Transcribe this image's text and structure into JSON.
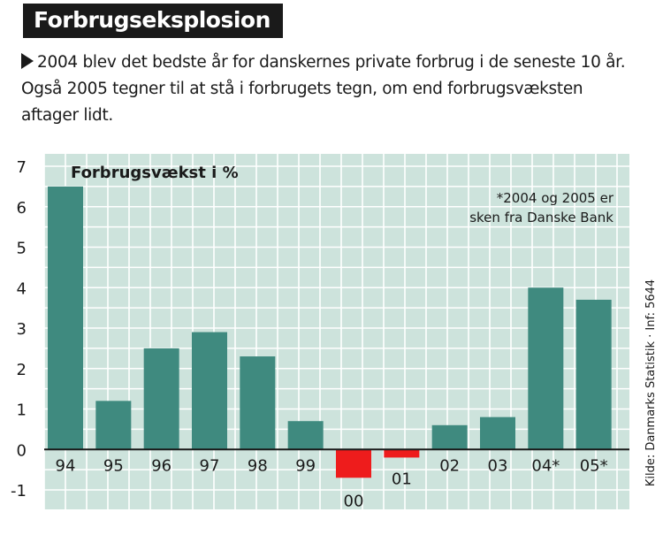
{
  "title": "Forbrugseksplosion",
  "intro": "2004 blev det bedste år for danskernes private forbrug i de seneste 10 år. Også 2005 tegner til at stå i forbrugets tegn, om end forbrugsvæksten aftager lidt.",
  "colors": {
    "plot_bg": "#cde3dc",
    "bar_positive": "#3f8a7f",
    "bar_negative": "#ee1c1c",
    "grid": "#ffffff",
    "title_bg": "#1a1a1a"
  },
  "chart_data": {
    "type": "bar",
    "ylabel": "Forbrugsvækst i %",
    "note_lines": [
      "*2004 og 2005 er",
      "sken fra Danske Bank"
    ],
    "source": "Kilde: Danmarks Statistik · Inf: 5644",
    "ylim": [
      -1,
      7
    ],
    "yticks": [
      -1,
      0,
      1,
      2,
      3,
      4,
      5,
      6,
      7
    ],
    "grid": true,
    "categories": [
      "94",
      "95",
      "96",
      "97",
      "98",
      "99",
      "00",
      "01",
      "02",
      "03",
      "04*",
      "05*"
    ],
    "values": [
      6.5,
      1.2,
      2.5,
      2.9,
      2.3,
      0.7,
      -0.7,
      -0.2,
      0.6,
      0.8,
      4.0,
      3.7
    ]
  }
}
